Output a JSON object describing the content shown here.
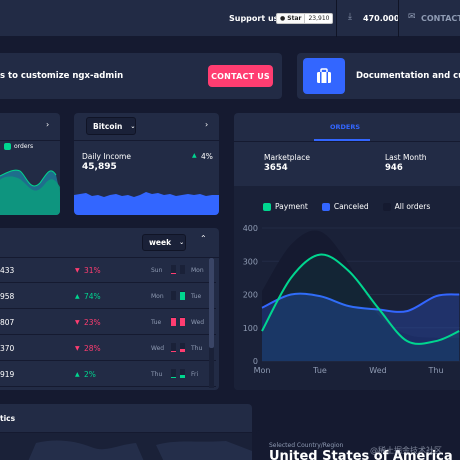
{
  "header": {
    "support_label": "Support us:",
    "star_label": "Star",
    "star_count": "23,910",
    "downloads": "470.000",
    "contact": "CONTACT@"
  },
  "promo": {
    "text": "s to customize ngx-admin",
    "button": "CONTACT US",
    "docs_text": "Documentation and cust"
  },
  "widget_left": {
    "legend": "orders"
  },
  "crypto": {
    "select": "Bitcoin",
    "label": "Daily Income",
    "value": "45,895",
    "change": "4%"
  },
  "table": {
    "period": "week",
    "rows": [
      {
        "value": "433",
        "delta": "31%",
        "dir": "down",
        "day1": "Sun",
        "day2": "Mon",
        "color": "#ff3d71",
        "bar1": 0.1,
        "bar2": 0.0
      },
      {
        "value": "958",
        "delta": "74%",
        "dir": "up",
        "day1": "Mon",
        "day2": "Tue",
        "color": "#00d68f",
        "bar1": 0.0,
        "bar2": 0.9
      },
      {
        "value": "807",
        "delta": "23%",
        "dir": "down",
        "day1": "Tue",
        "day2": "Wed",
        "color": "#ff3d71",
        "bar1": 0.9,
        "bar2": 0.9
      },
      {
        "value": "370",
        "delta": "28%",
        "dir": "down",
        "day1": "Wed",
        "day2": "Thu",
        "color": "#ff3d71",
        "bar1": 0.1,
        "bar2": 0.3
      },
      {
        "value": "919",
        "delta": "2%",
        "dir": "up",
        "day1": "Thu",
        "day2": "Fri",
        "color": "#00d68f",
        "bar1": 0.1,
        "bar2": 0.3
      }
    ]
  },
  "orders": {
    "tab": "ORDERS",
    "marketplace_label": "Marketplace",
    "marketplace_value": "3654",
    "lastmonth_label": "Last Month",
    "lastmonth_value": "946",
    "legend": [
      "Payment",
      "Canceled",
      "All orders"
    ],
    "colors": {
      "payment": "#00d68f",
      "canceled": "#3366ff",
      "all": "#151a30"
    }
  },
  "chart_data": {
    "type": "area",
    "categories": [
      "Mon",
      "Tue",
      "Wed",
      "Thu"
    ],
    "ylim": [
      0,
      400
    ],
    "yticks": [
      0,
      100,
      200,
      300,
      400
    ],
    "series": [
      {
        "name": "Payment",
        "x": [
          0,
          0.5,
          1,
          1.5,
          2,
          2.5,
          3,
          3.4
        ],
        "values": [
          90,
          250,
          320,
          270,
          160,
          60,
          60,
          90
        ]
      },
      {
        "name": "Canceled",
        "x": [
          0,
          0.5,
          1,
          1.5,
          2,
          2.5,
          3,
          3.4
        ],
        "values": [
          160,
          200,
          195,
          165,
          155,
          150,
          195,
          200
        ]
      },
      {
        "name": "All orders",
        "x": [
          0,
          0.5,
          1,
          1.5,
          2,
          2.5,
          3,
          3.4
        ],
        "values": [
          210,
          350,
          390,
          290,
          140,
          80,
          70,
          70
        ]
      }
    ]
  },
  "bottom": {
    "stats_title": "tics",
    "country_label": "Selected Country/Region",
    "country_name": "United States of America",
    "watermark": "@稀土掘金技术社区"
  }
}
